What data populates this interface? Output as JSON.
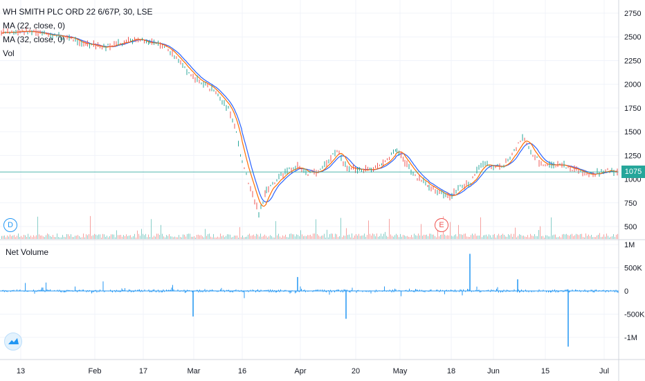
{
  "header": {
    "title": "WH SMITH PLC ORD 22 6/67P, 30, LSE",
    "ma1": "MA (22, close, 0)",
    "ma2": "MA (32, close, 0)",
    "vol": "Vol"
  },
  "lower_pane": {
    "title": "Net Volume"
  },
  "markers": {
    "dividend": "D",
    "earnings": "E"
  },
  "last_price": "1075",
  "colors": {
    "price": "#26a69a",
    "ma_22": "#ff6d00",
    "ma_32": "#2962ff",
    "net_volume": "#2196f3",
    "volume_up": "#26a69a",
    "volume_down": "#ef5350",
    "grid": "#f0f3fa",
    "axis_text": "#131722"
  },
  "icons": {
    "logo": "tradingview-logo-icon"
  },
  "chart_data": [
    {
      "type": "line",
      "pane": "price",
      "yaxis_ticks": [
        "2750",
        "2500",
        "2250",
        "2000",
        "1750",
        "1500",
        "1250",
        "1000",
        "750",
        "500"
      ],
      "ylim": [
        500,
        2750
      ],
      "xaxis_ticks": [
        "13",
        "Feb",
        "17",
        "Mar",
        "16",
        "Apr",
        "20",
        "May",
        "18",
        "Jun",
        "15",
        "Jul"
      ],
      "series": [
        {
          "points": [
            [
              "13",
              2530
            ],
            [
              "Feb",
              2400
            ],
            [
              "17",
              2450
            ],
            [
              "Mar",
              2020
            ],
            [
              "16",
              1300
            ],
            [
              "Apr",
              1080
            ],
            [
              "20",
              1100
            ],
            [
              "May",
              1230
            ],
            [
              "18",
              830
            ],
            [
              "Jun",
              1100
            ],
            [
              "15",
              1130
            ],
            [
              "Jul",
              1075
            ]
          ]
        }
      ],
      "last_value": 1075,
      "grid": true
    },
    {
      "type": "bar",
      "pane": "net_volume",
      "yaxis_ticks": [
        "1M",
        "500K",
        "0",
        "-500K",
        "-1M"
      ],
      "ylim": [
        -1300000,
        1000000
      ],
      "grid": true
    }
  ]
}
